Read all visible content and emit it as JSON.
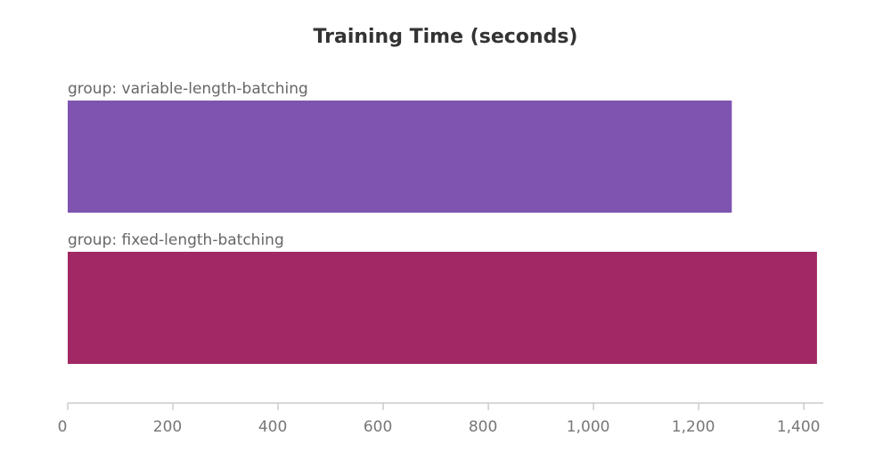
{
  "chart_data": {
    "type": "bar",
    "orientation": "horizontal",
    "title": "Training Time (seconds)",
    "categories": [
      "group: variable-length-batching",
      "group: fixed-length-batching"
    ],
    "values": [
      1263,
      1425
    ],
    "colors": [
      "#7e54b0",
      "#a12864"
    ],
    "xlim": [
      0,
      1437
    ],
    "xticks": [
      0,
      200,
      400,
      600,
      800,
      {
        "value": 1000,
        "label": "1,000"
      },
      {
        "value": 1200,
        "label": "1,200"
      },
      {
        "value": 1400,
        "label": "1,400"
      }
    ]
  }
}
